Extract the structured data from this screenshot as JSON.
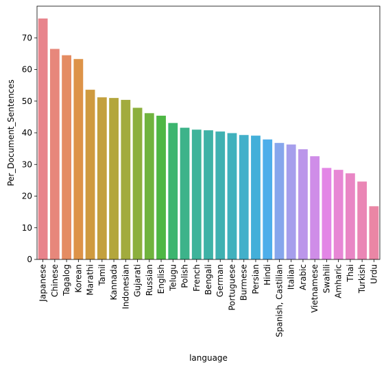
{
  "chart_data": {
    "type": "bar",
    "xlabel": "language",
    "ylabel": "Per_Document_Sentences",
    "ylim": [
      0,
      80
    ],
    "yticks": [
      0,
      10,
      20,
      30,
      40,
      50,
      60,
      70
    ],
    "grid": false,
    "categories": [
      "Japanese",
      "Chinese",
      "Tagalog",
      "Korean",
      "Marathi",
      "Tamil",
      "Kannada",
      "Indonesian",
      "Gujarati",
      "Russian",
      "English",
      "Telugu",
      "Polish",
      "French",
      "Bengali",
      "German",
      "Portuguese",
      "Burmese",
      "Persian",
      "Hindi",
      "Spanish, Castilian",
      "Italian",
      "Arabic",
      "Vietnamese",
      "Swahili",
      "Amharic",
      "Thai",
      "Turkish",
      "Urdu"
    ],
    "values": [
      76.1,
      66.5,
      64.5,
      63.3,
      53.6,
      51.2,
      51.0,
      50.4,
      47.9,
      46.2,
      45.4,
      43.1,
      41.6,
      41.0,
      40.8,
      40.4,
      39.9,
      39.3,
      39.1,
      37.9,
      36.8,
      36.3,
      34.8,
      32.6,
      28.9,
      28.3,
      27.2,
      24.6,
      16.8
    ],
    "colors": [
      "#e8848c",
      "#e7877b",
      "#e48c62",
      "#dd9348",
      "#cf9a3f",
      "#c3a03e",
      "#b3a63c",
      "#a2ab3d",
      "#8caf3d",
      "#70b33e",
      "#4eb745",
      "#3cb56f",
      "#3db38a",
      "#3eb39a",
      "#3fb2a6",
      "#3fb1b1",
      "#40b1bd",
      "#42b0ca",
      "#43afd9",
      "#4daeea",
      "#86a6ec",
      "#a69eec",
      "#bb96ea",
      "#cf8de8",
      "#e386e6",
      "#e787d5",
      "#e986c5",
      "#ea86b5",
      "#ea86a5"
    ]
  }
}
